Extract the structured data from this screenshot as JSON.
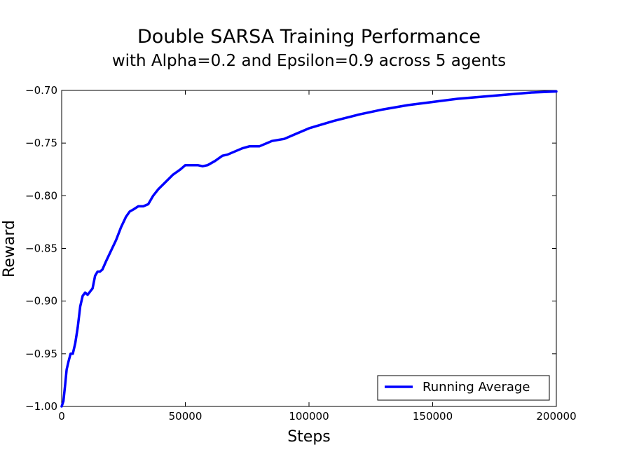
{
  "chart_data": {
    "type": "line",
    "title": "Double SARSA Training Performance",
    "subtitle": "with Alpha=0.2 and Epsilon=0.9 across 5 agents",
    "xlabel": "Steps",
    "ylabel": "Reward",
    "xlim": [
      0,
      200000
    ],
    "ylim": [
      -1.0,
      -0.7
    ],
    "x_ticks": [
      0,
      50000,
      100000,
      150000,
      200000
    ],
    "x_tick_labels": [
      "0",
      "50000",
      "100000",
      "150000",
      "200000"
    ],
    "y_ticks": [
      -1.0,
      -0.95,
      -0.9,
      -0.85,
      -0.8,
      -0.75,
      -0.7
    ],
    "y_tick_labels": [
      "−1.00",
      "−0.95",
      "−0.90",
      "−0.85",
      "−0.80",
      "−0.75",
      "−0.70"
    ],
    "grid": false,
    "legend_position": "lower-right",
    "series": [
      {
        "name": "Running Average",
        "color": "#0000ff",
        "x": [
          0,
          700,
          1400,
          2000,
          2800,
          3600,
          4500,
          5500,
          6500,
          7500,
          8500,
          9500,
          10500,
          12500,
          13500,
          14500,
          15500,
          16500,
          18000,
          20000,
          22000,
          24000,
          26000,
          27500,
          29000,
          31000,
          33000,
          35000,
          37000,
          39000,
          42000,
          45000,
          48000,
          50000,
          52000,
          55000,
          57000,
          59000,
          62000,
          65000,
          67000,
          70000,
          73000,
          76000,
          80000,
          82000,
          85000,
          90000,
          95000,
          100000,
          110000,
          120000,
          130000,
          140000,
          150000,
          160000,
          170000,
          180000,
          190000,
          200000
        ],
        "y": [
          -1.0,
          -0.995,
          -0.98,
          -0.965,
          -0.957,
          -0.95,
          -0.95,
          -0.94,
          -0.925,
          -0.905,
          -0.895,
          -0.892,
          -0.894,
          -0.888,
          -0.876,
          -0.872,
          -0.872,
          -0.87,
          -0.862,
          -0.852,
          -0.842,
          -0.83,
          -0.82,
          -0.815,
          -0.813,
          -0.81,
          -0.81,
          -0.808,
          -0.8,
          -0.794,
          -0.787,
          -0.78,
          -0.775,
          -0.771,
          -0.771,
          -0.771,
          -0.772,
          -0.771,
          -0.767,
          -0.762,
          -0.761,
          -0.758,
          -0.755,
          -0.753,
          -0.753,
          -0.751,
          -0.748,
          -0.746,
          -0.741,
          -0.736,
          -0.729,
          -0.723,
          -0.718,
          -0.714,
          -0.711,
          -0.708,
          -0.706,
          -0.704,
          -0.702,
          -0.701
        ]
      }
    ]
  }
}
